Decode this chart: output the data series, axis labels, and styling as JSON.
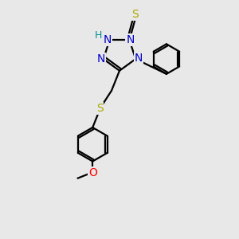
{
  "bg_color": "#e8e8e8",
  "N_color": "#0000cc",
  "S_color": "#aaaa00",
  "O_color": "#ff0000",
  "H_color": "#009090",
  "C_color": "#000000",
  "lw": 1.6,
  "fs": 10,
  "xlim": [
    0,
    10
  ],
  "ylim": [
    0,
    12
  ]
}
